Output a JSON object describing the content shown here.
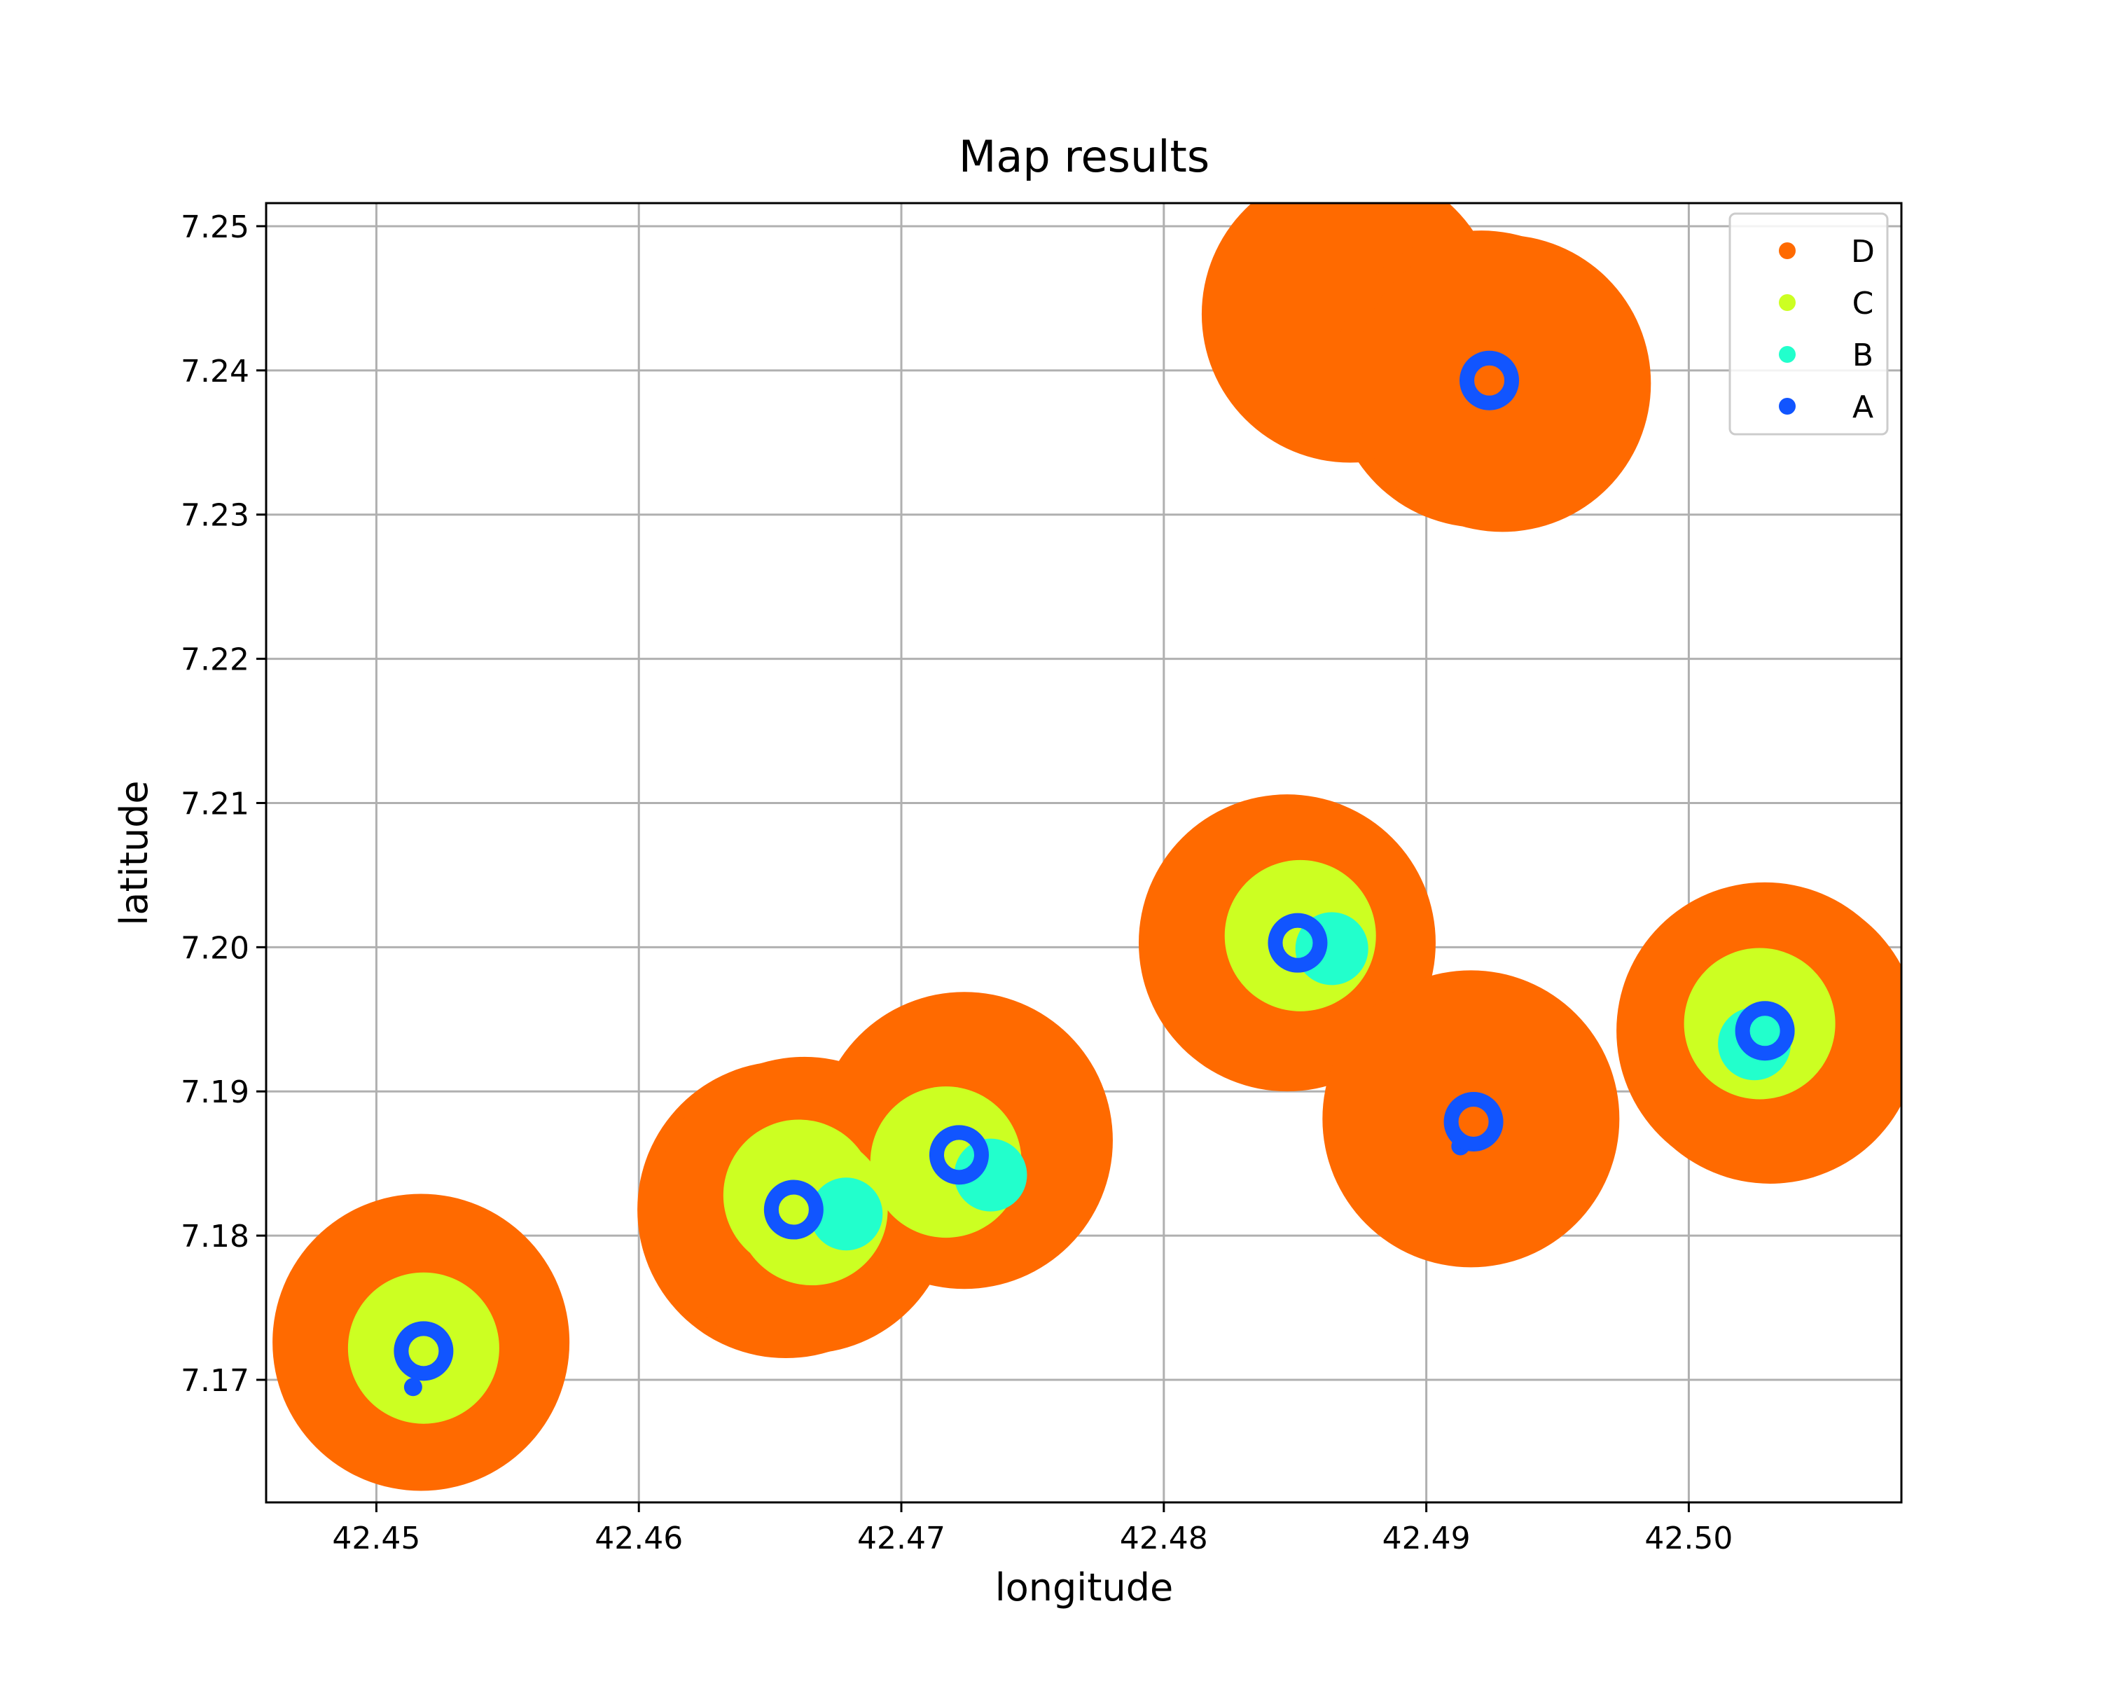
{
  "chart_data": {
    "type": "scatter",
    "title": "Map results",
    "xlabel": "longitude",
    "ylabel": "latitude",
    "xlim": [
      42.4458,
      42.5081
    ],
    "ylim": [
      7.1615,
      7.2516
    ],
    "x_ticks": [
      42.45,
      42.46,
      42.47,
      42.48,
      42.49,
      42.5
    ],
    "x_tick_labels": [
      "42.45",
      "42.46",
      "42.47",
      "42.48",
      "42.49",
      "42.50"
    ],
    "y_ticks": [
      7.17,
      7.18,
      7.19,
      7.2,
      7.21,
      7.22,
      7.23,
      7.24,
      7.25
    ],
    "y_tick_labels": [
      "7.17",
      "7.18",
      "7.19",
      "7.20",
      "7.21",
      "7.22",
      "7.23",
      "7.24",
      "7.25"
    ],
    "grid": true,
    "legend_position": "top-right",
    "legend": [
      "D",
      "C",
      "B",
      "A"
    ],
    "series": [
      {
        "name": "D",
        "color": "#ff6a00",
        "marker": "large filled circle",
        "points": [
          {
            "x": 42.4517,
            "y": 7.1726
          },
          {
            "x": 42.4656,
            "y": 7.1818
          },
          {
            "x": 42.4663,
            "y": 7.1821
          },
          {
            "x": 42.4724,
            "y": 7.1866
          },
          {
            "x": 42.4847,
            "y": 7.2003
          },
          {
            "x": 42.4917,
            "y": 7.1881
          },
          {
            "x": 42.4871,
            "y": 7.2439
          },
          {
            "x": 42.4921,
            "y": 7.2394
          },
          {
            "x": 42.4929,
            "y": 7.2391
          },
          {
            "x": 42.5029,
            "y": 7.1942
          },
          {
            "x": 42.5031,
            "y": 7.1939
          }
        ]
      },
      {
        "name": "C",
        "color": "#ccff22",
        "marker": "medium filled circle",
        "points": [
          {
            "x": 42.4518,
            "y": 7.1722
          },
          {
            "x": 42.4661,
            "y": 7.1828
          },
          {
            "x": 42.4666,
            "y": 7.1818
          },
          {
            "x": 42.4717,
            "y": 7.1851
          },
          {
            "x": 42.4852,
            "y": 7.2008
          },
          {
            "x": 42.5027,
            "y": 7.1947
          }
        ]
      },
      {
        "name": "B",
        "color": "#22ffcc",
        "marker": "small filled circle",
        "points": [
          {
            "x": 42.4679,
            "y": 7.1815
          },
          {
            "x": 42.4734,
            "y": 7.1842
          },
          {
            "x": 42.4864,
            "y": 7.1999
          },
          {
            "x": 42.5025,
            "y": 7.1933
          }
        ]
      },
      {
        "name": "A",
        "color": "#1155ff",
        "marker": "dot",
        "points": [
          {
            "x": 42.4514,
            "y": 7.1695
          },
          {
            "x": 42.4913,
            "y": 7.1862
          }
        ]
      },
      {
        "name": "A (ring)",
        "color": "#1155ff",
        "marker": "hollow ring",
        "points": [
          {
            "x": 42.4518,
            "y": 7.172
          },
          {
            "x": 42.4659,
            "y": 7.1818
          },
          {
            "x": 42.4722,
            "y": 7.1856
          },
          {
            "x": 42.4851,
            "y": 7.2003
          },
          {
            "x": 42.4918,
            "y": 7.1879
          },
          {
            "x": 42.4924,
            "y": 7.2393
          },
          {
            "x": 42.5029,
            "y": 7.1942
          }
        ]
      }
    ]
  }
}
